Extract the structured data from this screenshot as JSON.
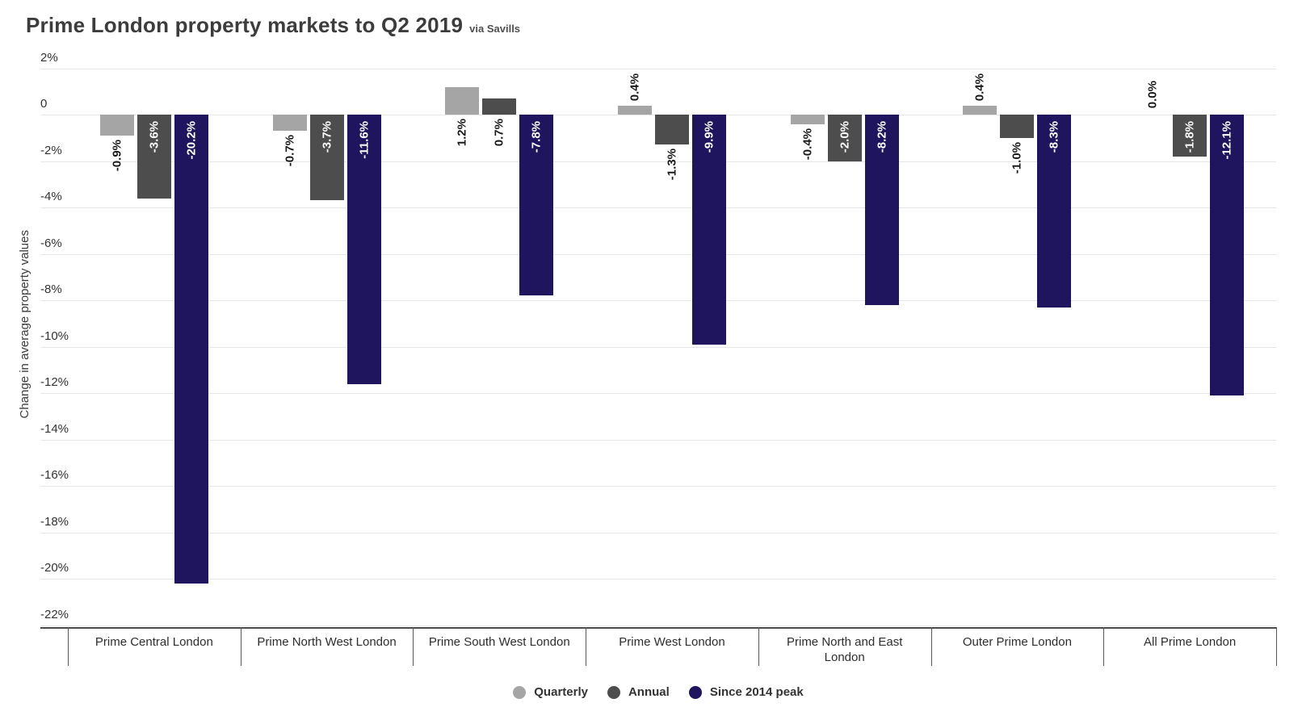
{
  "header": {
    "title": "Prime London property markets to Q2 2019",
    "source_note": "via Savills"
  },
  "y_axis": {
    "title": "Change in average property values",
    "tick_labels": [
      "2%",
      "0",
      "-2%",
      "-4%",
      "-6%",
      "-8%",
      "-10%",
      "-12%",
      "-14%",
      "-16%",
      "-18%",
      "-20%",
      "-22%"
    ],
    "tick_values": [
      2,
      0,
      -2,
      -4,
      -6,
      -8,
      -10,
      -12,
      -14,
      -16,
      -18,
      -20,
      -22
    ]
  },
  "legend": {
    "items": [
      {
        "label": "Quarterly",
        "color": "#a5a5a5"
      },
      {
        "label": "Annual",
        "color": "#4d4d4d"
      },
      {
        "label": "Since 2014 peak",
        "color": "#1e155e"
      }
    ]
  },
  "chart_data": {
    "type": "bar",
    "title": "Prime London property markets to Q2 2019",
    "subtitle": "via Savills",
    "xlabel": "",
    "ylabel": "Change in average property values",
    "ylim": [
      -22,
      2
    ],
    "grid": "horizontal",
    "legend_position": "bottom-center",
    "categories": [
      "Prime Central London",
      "Prime North West London",
      "Prime South West London",
      "Prime West London",
      "Prime North and East London",
      "Outer Prime London",
      "All Prime London"
    ],
    "series": [
      {
        "name": "Quarterly",
        "color": "#a5a5a5",
        "values": [
          -0.9,
          -0.7,
          1.2,
          0.4,
          -0.4,
          0.4,
          0.0
        ],
        "labels": [
          "-0.9%",
          "-0.7%",
          "1.2%",
          "0.4%",
          "-0.4%",
          "0.4%",
          "0.0%"
        ],
        "label_pos": [
          "below-end",
          "below-end",
          "below-base",
          "above-end",
          "below-end",
          "above-end",
          "above-base"
        ]
      },
      {
        "name": "Annual",
        "color": "#4d4d4d",
        "values": [
          -3.6,
          -3.7,
          0.7,
          -1.3,
          -2.0,
          -1.0,
          -1.8
        ],
        "labels": [
          "-3.6%",
          "-3.7%",
          "0.7%",
          "-1.3%",
          "-2.0%",
          "-1.0%",
          "-1.8%"
        ],
        "label_pos": [
          "inside",
          "inside",
          "below-base",
          "below-end",
          "inside",
          "below-end",
          "inside"
        ]
      },
      {
        "name": "Since 2014 peak",
        "color": "#1e155e",
        "values": [
          -20.2,
          -11.6,
          -7.8,
          -9.9,
          -8.2,
          -8.3,
          -12.1
        ],
        "labels": [
          "-20.2%",
          "-11.6%",
          "-7.8%",
          "-9.9%",
          "-8.2%",
          "-8.3%",
          "-12.1%"
        ],
        "label_pos": [
          "inside",
          "inside",
          "inside",
          "inside",
          "inside",
          "inside",
          "inside"
        ]
      }
    ]
  }
}
